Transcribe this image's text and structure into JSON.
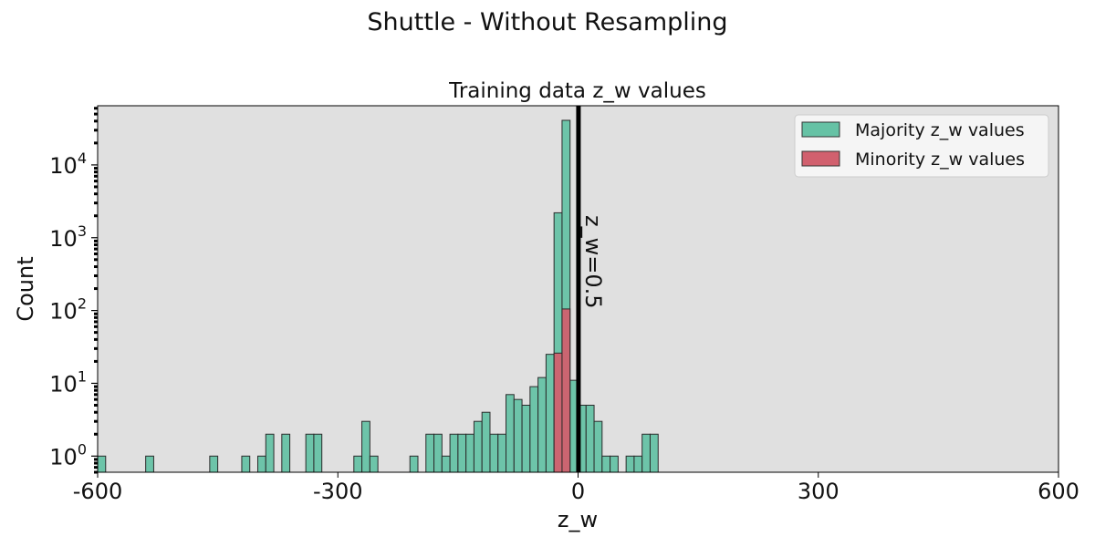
{
  "chart_data": {
    "type": "bar",
    "suptitle": "Shuttle - Without Resampling",
    "title": "Training data z_w values",
    "xlabel": "z_w",
    "ylabel": "Count",
    "xlim": [
      -600,
      600
    ],
    "ylim": [
      0.6,
      65000
    ],
    "yscale": "log",
    "xticks": [
      -600,
      -300,
      0,
      300,
      600
    ],
    "xtick_labels": [
      "-600",
      "-300",
      "0",
      "300",
      "600"
    ],
    "yticks": [
      1,
      10,
      100,
      1000,
      10000
    ],
    "ytick_labels": [
      {
        "base": "10",
        "exp": "0"
      },
      {
        "base": "10",
        "exp": "1"
      },
      {
        "base": "10",
        "exp": "2"
      },
      {
        "base": "10",
        "exp": "3"
      },
      {
        "base": "10",
        "exp": "4"
      }
    ],
    "bin_width": 10,
    "grid": false,
    "legend_position": "top-right",
    "background": "#e0e0e0",
    "vline": {
      "x": 0.5,
      "label": "z_w=0.5",
      "color": "#000000"
    },
    "series": [
      {
        "name": "Majority z_w values",
        "color": "#66c2a5",
        "bins": [
          {
            "x0": -600,
            "count": 1
          },
          {
            "x0": -540,
            "count": 1
          },
          {
            "x0": -460,
            "count": 1
          },
          {
            "x0": -420,
            "count": 1
          },
          {
            "x0": -400,
            "count": 1
          },
          {
            "x0": -390,
            "count": 2
          },
          {
            "x0": -370,
            "count": 2
          },
          {
            "x0": -340,
            "count": 2
          },
          {
            "x0": -330,
            "count": 2
          },
          {
            "x0": -280,
            "count": 1
          },
          {
            "x0": -270,
            "count": 3
          },
          {
            "x0": -260,
            "count": 1
          },
          {
            "x0": -210,
            "count": 1
          },
          {
            "x0": -190,
            "count": 2
          },
          {
            "x0": -180,
            "count": 2
          },
          {
            "x0": -170,
            "count": 1
          },
          {
            "x0": -160,
            "count": 2
          },
          {
            "x0": -150,
            "count": 2
          },
          {
            "x0": -140,
            "count": 2
          },
          {
            "x0": -130,
            "count": 3
          },
          {
            "x0": -120,
            "count": 4
          },
          {
            "x0": -110,
            "count": 2
          },
          {
            "x0": -100,
            "count": 2
          },
          {
            "x0": -90,
            "count": 7
          },
          {
            "x0": -80,
            "count": 6
          },
          {
            "x0": -70,
            "count": 5
          },
          {
            "x0": -60,
            "count": 9
          },
          {
            "x0": -50,
            "count": 12
          },
          {
            "x0": -40,
            "count": 25
          },
          {
            "x0": -30,
            "count": 2200
          },
          {
            "x0": -20,
            "count": 41000
          },
          {
            "x0": -10,
            "count": 11
          },
          {
            "x0": 0,
            "count": 5
          },
          {
            "x0": 10,
            "count": 5
          },
          {
            "x0": 20,
            "count": 3
          },
          {
            "x0": 30,
            "count": 1
          },
          {
            "x0": 40,
            "count": 1
          },
          {
            "x0": 60,
            "count": 1
          },
          {
            "x0": 70,
            "count": 1
          },
          {
            "x0": 80,
            "count": 2
          },
          {
            "x0": 90,
            "count": 2
          }
        ]
      },
      {
        "name": "Minority z_w values",
        "color": "#d1606e",
        "bins": [
          {
            "x0": -30,
            "count": 26
          },
          {
            "x0": -20,
            "count": 105
          }
        ]
      }
    ]
  }
}
